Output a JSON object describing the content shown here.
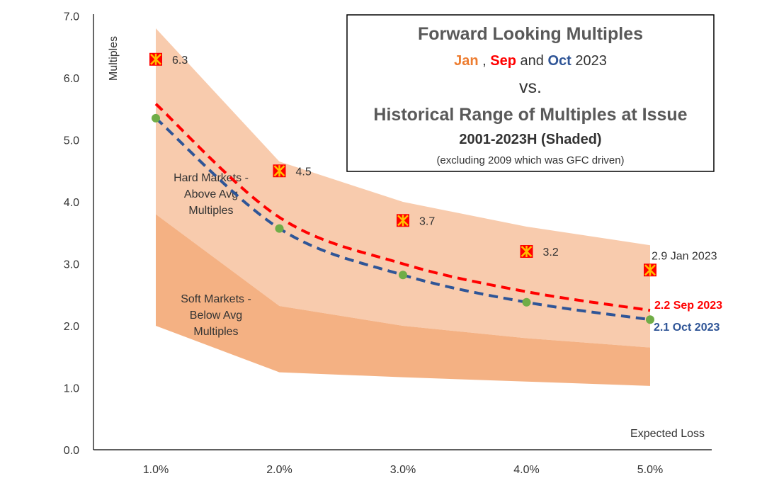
{
  "chart_data": {
    "type": "line",
    "title": "Forward Looking Multiples",
    "subtitle_parts": [
      {
        "text": "Jan",
        "color": "#ed7d31",
        "bold": true
      },
      {
        "text": " , ",
        "color": "#333333",
        "bold": false
      },
      {
        "text": "Sep",
        "color": "#ff0000",
        "bold": true
      },
      {
        "text": " and ",
        "color": "#333333",
        "bold": false
      },
      {
        "text": "Oct",
        "color": "#2f5597",
        "bold": true
      },
      {
        "text": " 2023",
        "color": "#333333",
        "bold": false
      }
    ],
    "title_vs": "vs.",
    "title_range": "Historical Range of Multiples at Issue",
    "title_period": "2001-2023H (Shaded)",
    "title_note": "(excluding 2009 which was GFC driven)",
    "ylabel": "Multiples",
    "xlabel": "Expected Loss",
    "ylim": [
      0,
      7
    ],
    "y_ticks": [
      "0.0",
      "1.0",
      "2.0",
      "3.0",
      "4.0",
      "5.0",
      "6.0",
      "7.0"
    ],
    "categories": [
      "1.0%",
      "2.0%",
      "3.0%",
      "4.0%",
      "5.0%"
    ],
    "x_values": [
      1,
      2,
      3,
      4,
      5
    ],
    "bands": [
      {
        "name": "Hard Markets - Above Avg Multiples",
        "label_lines": [
          "Hard Markets -",
          "Above Avg",
          "Multiples"
        ],
        "color": "#f8cbad",
        "upper": [
          6.8,
          4.65,
          4.0,
          3.6,
          3.3
        ],
        "lower": [
          3.8,
          2.32,
          2.0,
          1.8,
          1.65
        ]
      },
      {
        "name": "Soft Markets - Below Avg Multiples",
        "label_lines": [
          "Soft Markets -",
          "Below Avg",
          "Multiples"
        ],
        "color": "#f4b183",
        "upper": [
          3.8,
          2.32,
          2.0,
          1.8,
          1.65
        ],
        "lower": [
          2.0,
          1.25,
          1.17,
          1.1,
          1.03
        ]
      }
    ],
    "series": [
      {
        "name": "Jan 2023",
        "style": "marker",
        "color": "#ff0000",
        "marker_fill": "#ffc000",
        "values": [
          6.3,
          4.5,
          3.7,
          3.2,
          2.9
        ],
        "labels": [
          "6.3",
          "4.5",
          "3.7",
          "3.2",
          "2.9 Jan 2023"
        ]
      },
      {
        "name": "Sep 2023",
        "style": "dashed",
        "color": "#ff0000",
        "values": [
          5.58,
          3.75,
          3.0,
          2.55,
          2.25
        ],
        "end_label": "2.2 Sep 2023"
      },
      {
        "name": "Oct 2023",
        "style": "dashed-dots",
        "color": "#2f5597",
        "dot_color": "#70ad47",
        "values": [
          5.35,
          3.57,
          2.82,
          2.38,
          2.1
        ],
        "end_label": "2.1 Oct 2023"
      }
    ],
    "grid": false,
    "legend": "none"
  }
}
